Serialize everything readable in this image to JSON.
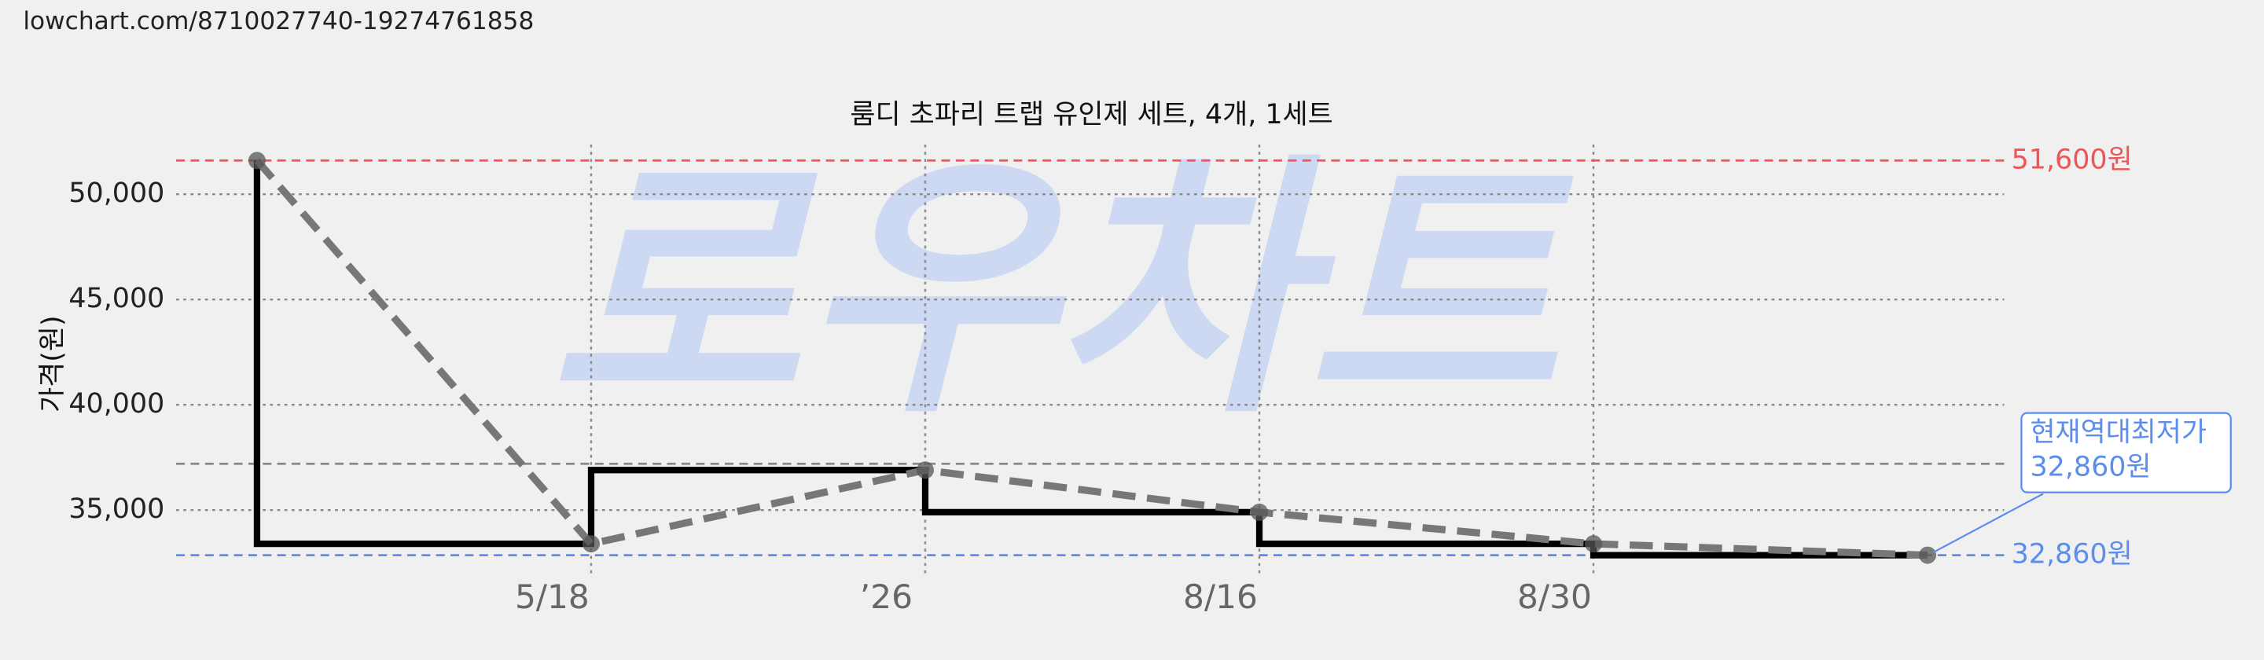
{
  "url": "lowchart.com/8710027740-19274761858",
  "chart_data": {
    "type": "step-line",
    "title": "룸디 초파리 트랩 유인제 세트, 4개, 1세트",
    "watermark": "로우차트",
    "y_label": "가격(원)",
    "categories": [
      null,
      "5/18",
      "’26",
      "8/16",
      "8/30",
      null
    ],
    "series": [
      {
        "name": "가격",
        "color": "#000000",
        "trend_color": "#777777",
        "values": [
          51600,
          33400,
          36900,
          34900,
          33400,
          32860
        ]
      }
    ],
    "ylim": [
      31800,
      52700
    ],
    "yticks": [
      {
        "value": 35000,
        "label": "35,000"
      },
      {
        "value": 40000,
        "label": "40,000"
      },
      {
        "value": 45000,
        "label": "45,000"
      },
      {
        "value": 50000,
        "label": "50,000"
      }
    ],
    "grid": true,
    "reference_lines": [
      {
        "value": 51600,
        "label": "51,600원",
        "color": "#f05454"
      },
      {
        "value": 32860,
        "label": "32,860원",
        "color": "#5b8def"
      },
      {
        "value": 37200,
        "color": "#888888"
      }
    ],
    "annotation": {
      "lines": [
        "현재역대최저가",
        "32,860원"
      ],
      "color": "#5b8def"
    }
  }
}
